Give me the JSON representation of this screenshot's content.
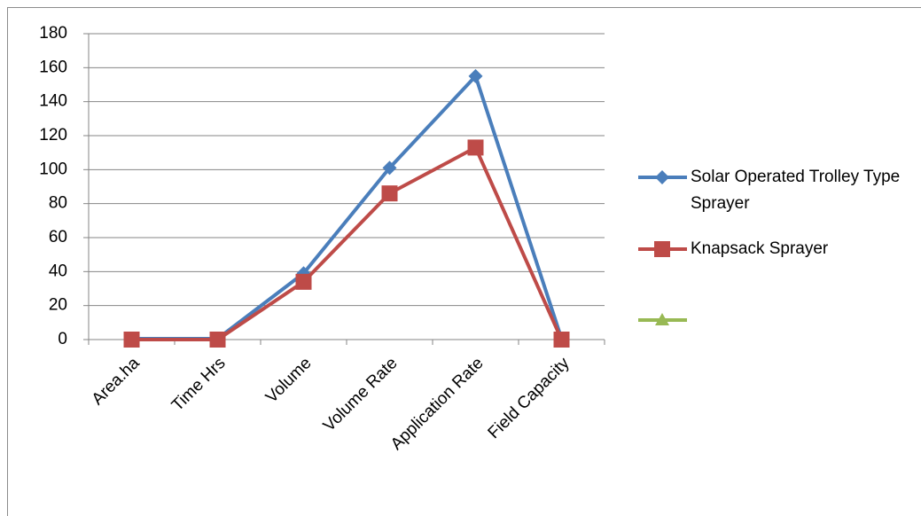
{
  "chart_data": {
    "type": "line",
    "categories": [
      "Area.ha",
      "Time Hrs",
      "Volume",
      "Volume Rate",
      "Application Rate",
      "Field Capacity"
    ],
    "series": [
      {
        "name": "Solar Operated  Trolley Type Sprayer",
        "color": "#4a7ebb",
        "marker": "diamond",
        "values": [
          0.5,
          0.5,
          39,
          101,
          155,
          0.5
        ]
      },
      {
        "name": "Knapsack Sprayer",
        "color": "#be4b48",
        "marker": "square",
        "values": [
          0,
          0,
          34,
          86,
          113,
          0
        ]
      }
    ],
    "ylim": [
      0,
      180
    ],
    "yticks": [
      0,
      20,
      40,
      60,
      80,
      100,
      120,
      140,
      160,
      180
    ],
    "grid": true,
    "legend": "right"
  }
}
